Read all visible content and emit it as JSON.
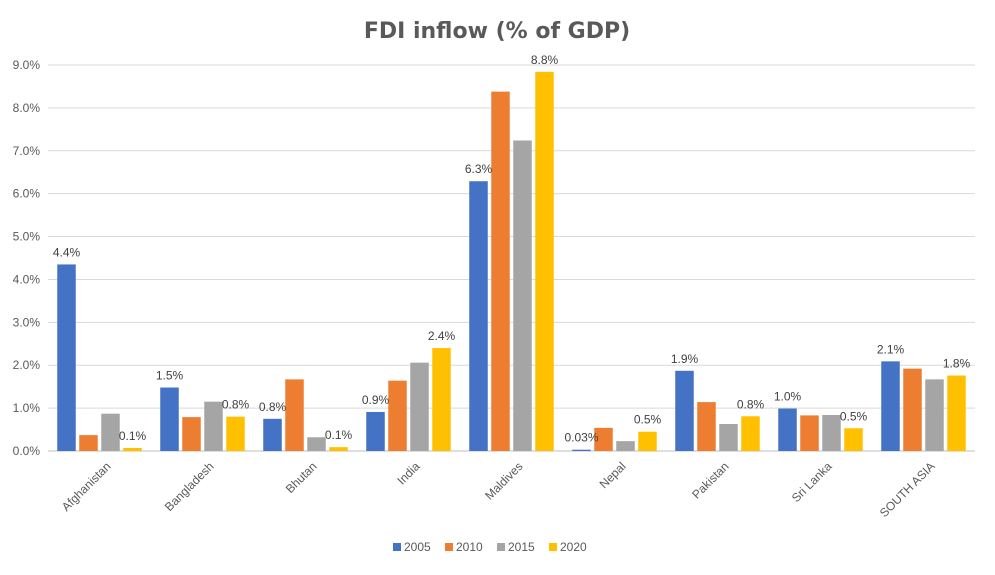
{
  "chart_data": {
    "type": "bar",
    "title": "FDI inflow (% of GDP)",
    "categories": [
      "Afghanistan",
      "Bangladesh",
      "Bhutan",
      "India",
      "Maldives",
      "Nepal",
      "Pakistan",
      "Sri Lanka",
      "SOUTH ASIA"
    ],
    "series": [
      {
        "name": "2005",
        "color": "#4472c4",
        "values": [
          4.35,
          1.48,
          0.75,
          0.91,
          6.29,
          0.03,
          1.87,
          0.99,
          2.09
        ]
      },
      {
        "name": "2010",
        "color": "#ed7d31",
        "values": [
          0.37,
          0.79,
          1.67,
          1.64,
          8.38,
          0.54,
          1.14,
          0.83,
          1.92
        ]
      },
      {
        "name": "2015",
        "color": "#a5a5a5",
        "values": [
          0.87,
          1.15,
          0.32,
          2.06,
          7.24,
          0.23,
          0.63,
          0.84,
          1.67
        ]
      },
      {
        "name": "2020",
        "color": "#ffc000",
        "values": [
          0.07,
          0.8,
          0.09,
          2.4,
          8.84,
          0.45,
          0.81,
          0.53,
          1.76
        ]
      }
    ],
    "data_labels": [
      {
        "category": "Afghanistan",
        "series": "2005",
        "text": "4.4%"
      },
      {
        "category": "Afghanistan",
        "series": "2020",
        "text": "0.1%"
      },
      {
        "category": "Bangladesh",
        "series": "2005",
        "text": "1.5%"
      },
      {
        "category": "Bangladesh",
        "series": "2020",
        "text": "0.8%"
      },
      {
        "category": "Bhutan",
        "series": "2005",
        "text": "0.8%"
      },
      {
        "category": "Bhutan",
        "series": "2020",
        "text": "0.1%"
      },
      {
        "category": "India",
        "series": "2005",
        "text": "0.9%"
      },
      {
        "category": "India",
        "series": "2020",
        "text": "2.4%"
      },
      {
        "category": "Maldives",
        "series": "2005",
        "text": "6.3%"
      },
      {
        "category": "Maldives",
        "series": "2020",
        "text": "8.8%"
      },
      {
        "category": "Nepal",
        "series": "2005",
        "text": "0.03%"
      },
      {
        "category": "Nepal",
        "series": "2020",
        "text": "0.5%"
      },
      {
        "category": "Pakistan",
        "series": "2005",
        "text": "1.9%"
      },
      {
        "category": "Pakistan",
        "series": "2020",
        "text": "0.8%"
      },
      {
        "category": "Sri Lanka",
        "series": "2005",
        "text": "1.0%"
      },
      {
        "category": "Sri Lanka",
        "series": "2020",
        "text": "0.5%"
      },
      {
        "category": "SOUTH ASIA",
        "series": "2005",
        "text": "2.1%"
      },
      {
        "category": "SOUTH ASIA",
        "series": "2020",
        "text": "1.8%"
      }
    ],
    "yticks": [
      "0.0%",
      "1.0%",
      "2.0%",
      "3.0%",
      "4.0%",
      "5.0%",
      "6.0%",
      "7.0%",
      "8.0%",
      "9.0%"
    ],
    "ylim": [
      0,
      9
    ],
    "xlabel": "",
    "ylabel": "",
    "grid": true,
    "legend_position": "bottom"
  }
}
